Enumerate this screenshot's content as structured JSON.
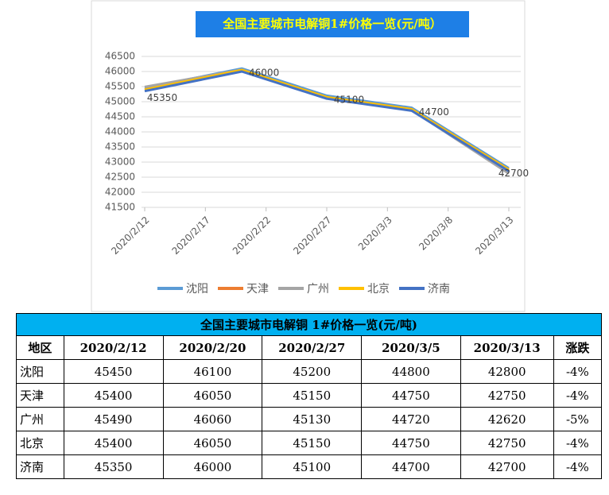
{
  "chart_data": {
    "type": "line",
    "title": "全国主要城市电解铜1#价格一览(元/吨）",
    "x": [
      "2020/2/12",
      "2020/2/20",
      "2020/2/27",
      "2020/3/5",
      "2020/3/13"
    ],
    "xlim": [
      "2020/2/12",
      "2020/3/13"
    ],
    "xticks": [
      "2020/2/12",
      "2020/2/17",
      "2020/2/22",
      "2020/2/27",
      "2020/3/3",
      "2020/3/8",
      "2020/3/13"
    ],
    "ylim": [
      41500,
      46500
    ],
    "yticks": [
      41500,
      42000,
      42500,
      43000,
      43500,
      44000,
      44500,
      45000,
      45500,
      46000,
      46500
    ],
    "grid": true,
    "legend": "bottom",
    "series": [
      {
        "name": "沈阳",
        "color": "#5b9bd5",
        "values": [
          45450,
          46100,
          45200,
          44800,
          42800
        ]
      },
      {
        "name": "天津",
        "color": "#ed7d31",
        "values": [
          45400,
          46050,
          45150,
          44750,
          42750
        ]
      },
      {
        "name": "广州",
        "color": "#a5a5a5",
        "values": [
          45490,
          46060,
          45130,
          44720,
          42620
        ]
      },
      {
        "name": "北京",
        "color": "#ffc000",
        "values": [
          45400,
          46050,
          45150,
          44750,
          42750
        ]
      },
      {
        "name": "济南",
        "color": "#4472c4",
        "values": [
          45350,
          46000,
          45100,
          44700,
          42700
        ],
        "data_labels": true
      }
    ]
  },
  "table": {
    "title": "全国主要城市电解铜 1#价格一览(元/吨)",
    "header": [
      "地区",
      "2020/2/12",
      "2020/2/20",
      "2020/2/27",
      "2020/3/5",
      "2020/3/13",
      "涨跌"
    ],
    "rows": [
      [
        "沈阳",
        "45450",
        "46100",
        "45200",
        "44800",
        "42800",
        "-4%"
      ],
      [
        "天津",
        "45400",
        "46050",
        "45150",
        "44750",
        "42750",
        "-4%"
      ],
      [
        "广州",
        "45490",
        "46060",
        "45130",
        "44720",
        "42620",
        "-5%"
      ],
      [
        "北京",
        "45400",
        "46050",
        "45150",
        "44750",
        "42750",
        "-4%"
      ],
      [
        "济南",
        "45350",
        "46000",
        "45100",
        "44700",
        "42700",
        "-4%"
      ]
    ]
  }
}
